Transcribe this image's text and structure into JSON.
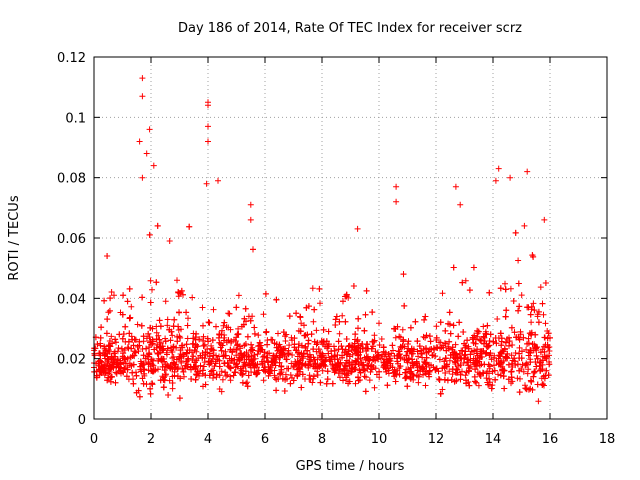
{
  "chart_data": {
    "type": "scatter",
    "title": "Day 186 of 2014, Rate Of TEC Index for receiver scrz",
    "xlabel": "GPS time / hours",
    "ylabel": "ROTI / TECUs",
    "xlim": [
      0,
      18
    ],
    "ylim": [
      0,
      0.12
    ],
    "xticks": [
      0,
      2,
      4,
      6,
      8,
      10,
      12,
      14,
      16,
      18
    ],
    "yticks": [
      0,
      0.02,
      0.04,
      0.06,
      0.08,
      0.1,
      0.12
    ],
    "xtick_labels": [
      "0",
      "2",
      "4",
      "6",
      "8",
      "10",
      "12",
      "14",
      "16",
      "18"
    ],
    "ytick_labels": [
      "0",
      "0.02",
      "0.04",
      "0.06",
      "0.08",
      "0.1",
      "0.12"
    ],
    "grid": true,
    "marker": "+",
    "color": "#ff0000",
    "x_range_of_data": [
      0,
      16
    ],
    "typical_band": [
      0.01,
      0.03
    ],
    "notable_peaks": [
      {
        "x": 1.7,
        "y": 0.113
      },
      {
        "x": 1.7,
        "y": 0.107
      },
      {
        "x": 1.95,
        "y": 0.096
      },
      {
        "x": 1.6,
        "y": 0.092
      },
      {
        "x": 1.85,
        "y": 0.088
      },
      {
        "x": 2.1,
        "y": 0.084
      },
      {
        "x": 1.7,
        "y": 0.08
      },
      {
        "x": 4.0,
        "y": 0.105
      },
      {
        "x": 4.0,
        "y": 0.104
      },
      {
        "x": 4.0,
        "y": 0.097
      },
      {
        "x": 4.0,
        "y": 0.092
      },
      {
        "x": 3.95,
        "y": 0.078
      },
      {
        "x": 4.35,
        "y": 0.079
      },
      {
        "x": 5.5,
        "y": 0.071
      },
      {
        "x": 5.5,
        "y": 0.066
      },
      {
        "x": 9.25,
        "y": 0.063
      },
      {
        "x": 10.6,
        "y": 0.077
      },
      {
        "x": 10.6,
        "y": 0.072
      },
      {
        "x": 12.7,
        "y": 0.077
      },
      {
        "x": 12.85,
        "y": 0.071
      },
      {
        "x": 14.2,
        "y": 0.083
      },
      {
        "x": 14.1,
        "y": 0.079
      },
      {
        "x": 15.2,
        "y": 0.082
      },
      {
        "x": 14.6,
        "y": 0.08
      },
      {
        "x": 15.8,
        "y": 0.066
      },
      {
        "x": 15.1,
        "y": 0.064
      }
    ]
  }
}
